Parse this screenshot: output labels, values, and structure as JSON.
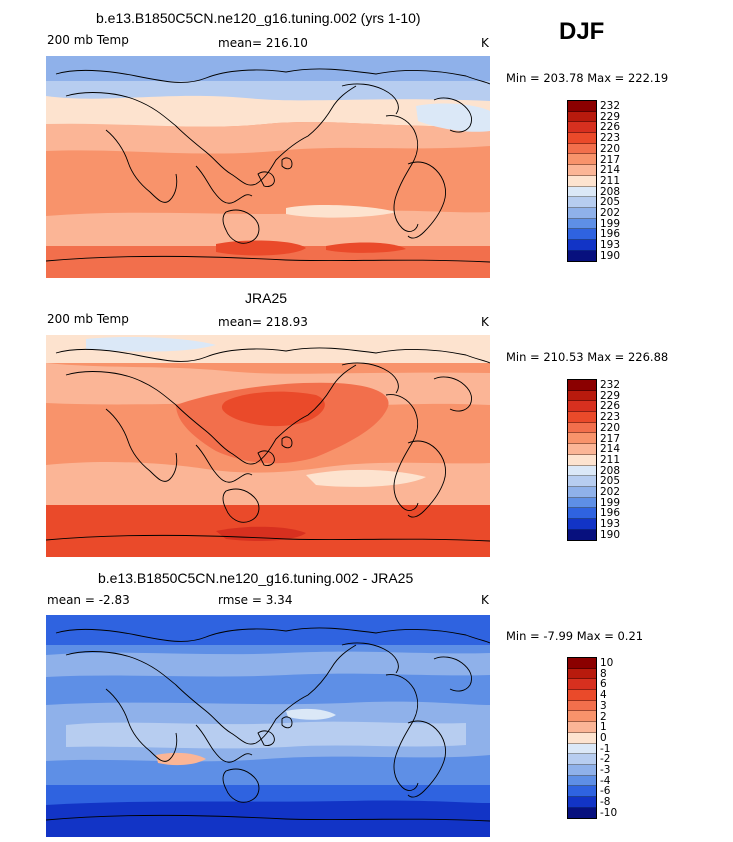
{
  "season": "DJF",
  "panels": [
    {
      "title": "b.e13.B1850C5CN.ne120_g16.tuning.002 (yrs 1-10)",
      "left_label": "200 mb Temp",
      "center_label": "mean= 216.10",
      "units": "K",
      "minmax": "Min = 203.78 Max = 222.19",
      "colorbar_labels": [
        "232",
        "229",
        "226",
        "223",
        "220",
        "217",
        "214",
        "211",
        "208",
        "205",
        "202",
        "199",
        "196",
        "193",
        "190"
      ]
    },
    {
      "title": "JRA25",
      "left_label": "200 mb Temp",
      "center_label": "mean= 218.93",
      "units": "K",
      "minmax": "Min = 210.53 Max = 226.88",
      "colorbar_labels": [
        "232",
        "229",
        "226",
        "223",
        "220",
        "217",
        "214",
        "211",
        "208",
        "205",
        "202",
        "199",
        "196",
        "193",
        "190"
      ]
    },
    {
      "title": "b.e13.B1850C5CN.ne120_g16.tuning.002 - JRA25",
      "left_label": "mean =   -2.83",
      "center_label": "rmse =    3.34",
      "units": "K",
      "minmax": "Min =  -7.99 Max =   0.21",
      "colorbar_labels": [
        "10",
        "8",
        "6",
        "4",
        "3",
        "2",
        "1",
        "0",
        "-1",
        "-2",
        "-3",
        "-4",
        "-6",
        "-8",
        "-10"
      ]
    }
  ],
  "colorbar_colors": [
    "#8b0000",
    "#b81a0d",
    "#d7301f",
    "#ea4a2a",
    "#f26f4c",
    "#f8936b",
    "#fbb596",
    "#fde3cf",
    "#dbe8f7",
    "#b7cdf0",
    "#8fb1ea",
    "#5e8fe6",
    "#2f63e0",
    "#1234c6",
    "#07107e"
  ],
  "map_colors": {
    "deep_red": "#d7301f",
    "red": "#ea4a2a",
    "orange": "#f26f4c",
    "salmon": "#f8936b",
    "light_salmon": "#fbb596",
    "cream": "#fde3cf",
    "pale_blue": "#dbe8f7",
    "light_blue": "#b7cdf0",
    "blue": "#8fb1ea",
    "mid_blue": "#5e8fe6",
    "strong_blue": "#2f63e0",
    "dark_blue": "#1234c6"
  }
}
